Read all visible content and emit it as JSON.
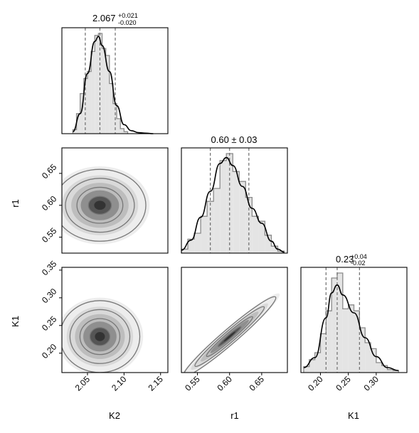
{
  "chart_data": {
    "type": "corner",
    "parameters": [
      "K2",
      "r1",
      "K1"
    ],
    "colors": {
      "hist_fill": "#e4e4e4",
      "hist_edge": "#8a8a8a",
      "kde_line": "#000000",
      "quantile_line": "#6e6e6e",
      "contour_line": "#777777",
      "frame": "#000000"
    },
    "titles": [
      {
        "value": "2.067",
        "sup": "+0.021",
        "sub": "-0.020"
      },
      {
        "value": "0.60 ± 0.03",
        "sup": "",
        "sub": ""
      },
      {
        "value": "0.23",
        "sup": "+0.04",
        "sub": "-0.02"
      }
    ],
    "ranges": {
      "K2": [
        2.015,
        2.16
      ],
      "r1": [
        0.525,
        0.69
      ],
      "K1": [
        0.165,
        0.355
      ]
    },
    "ticks": {
      "K2": [
        "2.05",
        "2.10",
        "2.15"
      ],
      "r1": [
        "0.55",
        "0.60",
        "0.65"
      ],
      "K1": [
        "0.20",
        "0.25",
        "0.30",
        "0.35"
      ]
    },
    "x_ticks_bottom": {
      "K1": [
        "0.20",
        "0.25",
        "0.30"
      ]
    },
    "axis_labels": {
      "x": [
        "K2",
        "r1",
        "K1"
      ],
      "y": [
        "r1",
        "K1"
      ]
    },
    "quantiles": {
      "K2": [
        2.047,
        2.067,
        2.088
      ],
      "r1": [
        0.57,
        0.6,
        0.63
      ],
      "K1": [
        0.21,
        0.23,
        0.27
      ]
    },
    "histograms": {
      "K2": {
        "edges": [
          2.03,
          2.035,
          2.04,
          2.045,
          2.05,
          2.055,
          2.06,
          2.065,
          2.07,
          2.075,
          2.08,
          2.085,
          2.09,
          2.095,
          2.1,
          2.105
        ],
        "counts": [
          0.04,
          0.2,
          0.4,
          0.55,
          0.62,
          0.82,
          0.98,
          1.0,
          0.85,
          0.78,
          0.5,
          0.3,
          0.15,
          0.05,
          0.02
        ]
      },
      "r1": {
        "edges": [
          0.525,
          0.535,
          0.545,
          0.555,
          0.565,
          0.575,
          0.585,
          0.595,
          0.605,
          0.615,
          0.625,
          0.635,
          0.645,
          0.655,
          0.665,
          0.675,
          0.685
        ],
        "counts": [
          0.04,
          0.14,
          0.2,
          0.37,
          0.52,
          0.65,
          0.93,
          1.0,
          0.82,
          0.72,
          0.56,
          0.37,
          0.32,
          0.18,
          0.07,
          0.02
        ]
      },
      "K1": {
        "edges": [
          0.17,
          0.18,
          0.19,
          0.2,
          0.21,
          0.22,
          0.23,
          0.24,
          0.25,
          0.26,
          0.27,
          0.28,
          0.29,
          0.3,
          0.31,
          0.32,
          0.33,
          0.34
        ],
        "counts": [
          0.06,
          0.13,
          0.2,
          0.39,
          0.62,
          0.95,
          1.0,
          0.64,
          0.68,
          0.62,
          0.45,
          0.3,
          0.24,
          0.1,
          0.07,
          0.03,
          0.02
        ]
      }
    },
    "kde": {
      "K2": [
        [
          2.03,
          0.02
        ],
        [
          2.04,
          0.2
        ],
        [
          2.05,
          0.6
        ],
        [
          2.06,
          0.92
        ],
        [
          2.065,
          0.97
        ],
        [
          2.07,
          0.88
        ],
        [
          2.08,
          0.62
        ],
        [
          2.09,
          0.28
        ],
        [
          2.1,
          0.09
        ],
        [
          2.11,
          0.03
        ],
        [
          2.12,
          0.01
        ],
        [
          2.13,
          0.005
        ],
        [
          2.14,
          0.0
        ]
      ],
      "r1": [
        [
          0.525,
          0.03
        ],
        [
          0.54,
          0.13
        ],
        [
          0.555,
          0.36
        ],
        [
          0.57,
          0.62
        ],
        [
          0.585,
          0.9
        ],
        [
          0.595,
          0.96
        ],
        [
          0.605,
          0.88
        ],
        [
          0.62,
          0.67
        ],
        [
          0.635,
          0.45
        ],
        [
          0.65,
          0.3
        ],
        [
          0.665,
          0.12
        ],
        [
          0.675,
          0.04
        ],
        [
          0.685,
          0.01
        ]
      ],
      "K1": [
        [
          0.17,
          0.05
        ],
        [
          0.19,
          0.15
        ],
        [
          0.21,
          0.55
        ],
        [
          0.22,
          0.8
        ],
        [
          0.23,
          0.88
        ],
        [
          0.24,
          0.78
        ],
        [
          0.26,
          0.6
        ],
        [
          0.28,
          0.35
        ],
        [
          0.3,
          0.16
        ],
        [
          0.32,
          0.05
        ],
        [
          0.34,
          0.02
        ]
      ]
    },
    "correlations": {
      "r1_vs_K2": 0.0,
      "K1_vs_K2": 0.0,
      "K1_vs_r1": 0.97
    },
    "grid": false,
    "legend": "none"
  }
}
